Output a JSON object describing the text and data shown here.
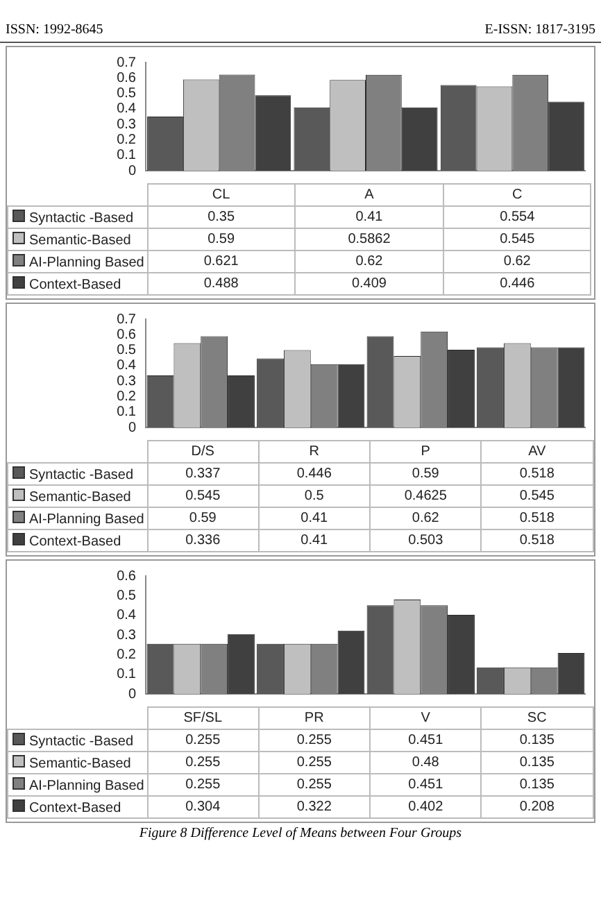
{
  "chart_data": [
    {
      "type": "bar",
      "annotations": [
        "ISSN: 1992-8645",
        "E-ISSN: 1817-3195"
      ],
      "categories": [
        "CL",
        "A",
        "C"
      ],
      "ylim": [
        0,
        0.7
      ],
      "yticks": [
        0,
        0.1,
        0.2,
        0.3,
        0.4,
        0.5,
        0.6,
        0.7
      ],
      "grid": false,
      "legend": "bottom",
      "data_labels": true,
      "series": [
        {
          "name": "Syntactic -Based",
          "color": "#595959",
          "values": [
            0.35,
            0.41,
            0.554
          ]
        },
        {
          "name": "Semantic-Based",
          "color": "#bfbfbf",
          "values": [
            0.59,
            0.5862,
            0.545
          ]
        },
        {
          "name": "AI-Planning Based",
          "color": "#808080",
          "values": [
            0.621,
            0.62,
            0.62
          ]
        },
        {
          "name": "Context-Based",
          "color": "#404040",
          "values": [
            0.488,
            0.409,
            0.446
          ]
        }
      ]
    },
    {
      "type": "bar",
      "categories": [
        "D/S",
        "R",
        "P",
        "AV"
      ],
      "ylim": [
        0,
        0.7
      ],
      "yticks": [
        0,
        0.1,
        0.2,
        0.3,
        0.4,
        0.5,
        0.6,
        0.7
      ],
      "grid": false,
      "legend": "bottom",
      "data_labels": true,
      "series": [
        {
          "name": "Syntactic -Based",
          "color": "#595959",
          "values": [
            0.337,
            0.446,
            0.59,
            0.518
          ]
        },
        {
          "name": "Semantic-Based",
          "color": "#bfbfbf",
          "values": [
            0.545,
            0.5,
            0.4625,
            0.545
          ]
        },
        {
          "name": "AI-Planning Based",
          "color": "#808080",
          "values": [
            0.59,
            0.41,
            0.62,
            0.518
          ]
        },
        {
          "name": "Context-Based",
          "color": "#404040",
          "values": [
            0.336,
            0.41,
            0.503,
            0.518
          ]
        }
      ]
    },
    {
      "type": "bar",
      "annotations": [
        "Figure 8 Difference Level of Means between Four Groups"
      ],
      "categories": [
        "SF/SL",
        "PR",
        "V",
        "SC"
      ],
      "ylim": [
        0,
        0.6
      ],
      "yticks": [
        0,
        0.1,
        0.2,
        0.3,
        0.4,
        0.5,
        0.6
      ],
      "grid": false,
      "legend": "bottom",
      "data_labels": true,
      "series": [
        {
          "name": "Syntactic -Based",
          "color": "#595959",
          "values": [
            0.255,
            0.255,
            0.451,
            0.135
          ]
        },
        {
          "name": "Semantic-Based",
          "color": "#bfbfbf",
          "values": [
            0.255,
            0.255,
            0.48,
            0.135
          ]
        },
        {
          "name": "AI-Planning Based",
          "color": "#808080",
          "values": [
            0.255,
            0.255,
            0.451,
            0.135
          ]
        },
        {
          "name": "Context-Based",
          "color": "#404040",
          "values": [
            0.304,
            0.322,
            0.402,
            0.208
          ]
        }
      ]
    }
  ]
}
